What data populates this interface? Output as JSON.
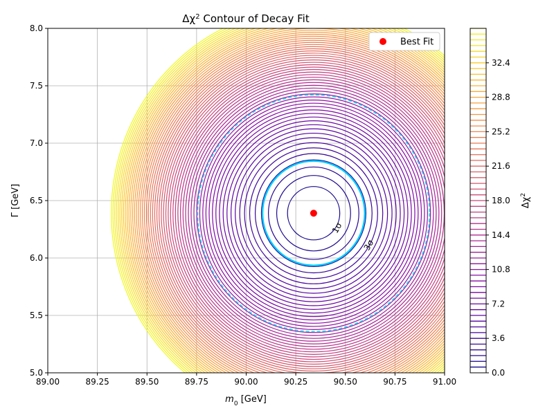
{
  "chart_data": {
    "type": "contour",
    "title_prefix": "Δχ",
    "title_suffix": " Contour of Decay Fit",
    "title_sup": "2",
    "xlabel_var": "m",
    "xlabel_sub": "0",
    "xlabel_unit": " [GeV]",
    "ylabel": "Γ [GeV]",
    "xlim": [
      89.0,
      91.0
    ],
    "ylim": [
      5.0,
      8.0
    ],
    "x_ticks": [
      89.0,
      89.25,
      89.5,
      89.75,
      90.0,
      90.25,
      90.5,
      90.75,
      91.0
    ],
    "x_tick_labels": [
      "89.00",
      "89.25",
      "89.50",
      "89.75",
      "90.00",
      "90.25",
      "90.50",
      "90.75",
      "91.00"
    ],
    "y_ticks": [
      5.0,
      5.5,
      6.0,
      6.5,
      7.0,
      7.5,
      8.0
    ],
    "y_tick_labels": [
      "5.0",
      "5.5",
      "6.0",
      "6.5",
      "7.0",
      "7.5",
      "8.0"
    ],
    "grid": true,
    "best_fit": {
      "m0": 90.34,
      "gamma": 6.39,
      "label": "Best Fit",
      "color": "#ff0000"
    },
    "sigma_x": 0.17,
    "sigma_y": 0.3,
    "levels_max": 36.0,
    "contour_count": 60,
    "sigma_contours": [
      {
        "label": "1σ",
        "delta_chi2": 2.3,
        "color": "#00ccff",
        "style": "solid",
        "label_x": 90.47,
        "label_y": 6.25
      },
      {
        "label": "3σ",
        "delta_chi2": 11.8,
        "color": "#22ddff",
        "style": "dashed",
        "label_x": 90.63,
        "label_y": 6.1
      }
    ],
    "colorbar": {
      "label_prefix": "Δχ",
      "label_sup": "2",
      "colormap": "plasma",
      "min": 0.0,
      "max": 36.0,
      "tick_labels": [
        "0.0",
        "3.6",
        "7.2",
        "10.8",
        "14.4",
        "18.0",
        "21.6",
        "25.2",
        "28.8",
        "32.4"
      ]
    },
    "legend": {
      "position": "top-right",
      "entries": [
        "Best Fit"
      ]
    }
  }
}
